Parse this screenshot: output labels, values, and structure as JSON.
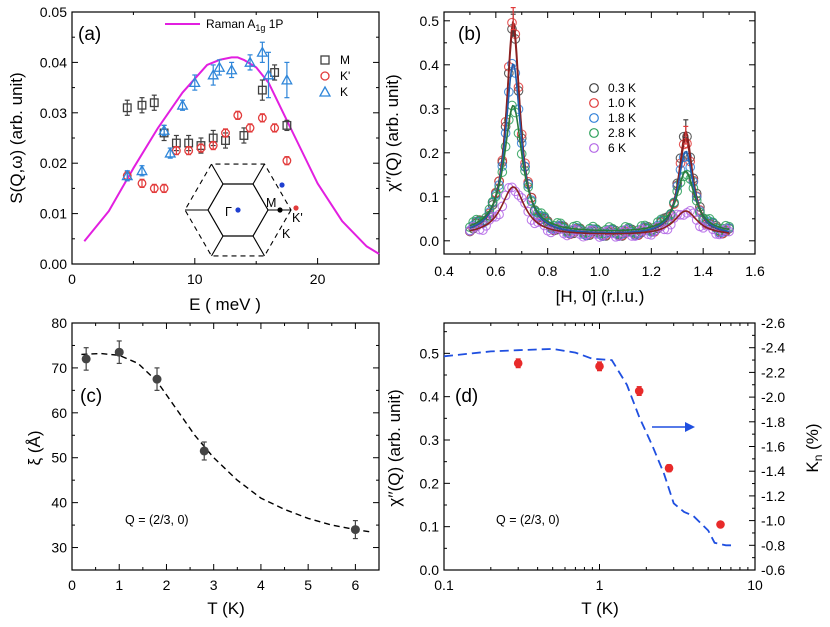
{
  "panel_labels": {
    "a": "(a)",
    "b": "(b)",
    "c": "(c)",
    "d": "(d)"
  },
  "panel_a": {
    "xlabel": "E ( meV )",
    "ylabel": "S(Q,ω) (arb. unit)",
    "xticks": [
      "0",
      "10",
      "20"
    ],
    "yticks": [
      "0.00",
      "0.01",
      "0.02",
      "0.03",
      "0.04",
      "0.05"
    ],
    "raman_label": "Raman A1g 1P",
    "bz_labels": {
      "gamma": "Γ",
      "m": "M",
      "k": "K",
      "kp": "K'"
    }
  },
  "panel_b": {
    "xlabel": "[H, 0] (r.l.u.)",
    "ylabel": "χ′′(Q) (arb. unit)",
    "xticks": [
      "0.4",
      "0.6",
      "0.8",
      "1.0",
      "1.2",
      "1.4",
      "1.6"
    ],
    "yticks": [
      "0.0",
      "0.1",
      "0.2",
      "0.3",
      "0.4",
      "0.5"
    ]
  },
  "panel_c": {
    "xlabel": "T (K)",
    "ylabel": "ξ (Å)",
    "xticks": [
      "0",
      "1",
      "2",
      "3",
      "4",
      "5",
      "6"
    ],
    "yticks": [
      "30",
      "40",
      "50",
      "60",
      "70",
      "80"
    ],
    "annotation": "Q = (2/3, 0)"
  },
  "panel_d": {
    "xlabel": "T (K)",
    "ylabel": "χ′′(Q) (arb. unit)",
    "ylabel_right": "Kn (%)",
    "xticks": [
      "0.1",
      "1",
      "10"
    ],
    "yticks": [
      "0.0",
      "0.1",
      "0.2",
      "0.3",
      "0.4",
      "0.5"
    ],
    "yticks_right": [
      "-0.6",
      "-0.8",
      "-1.0",
      "-1.2",
      "-1.4",
      "-1.6",
      "-1.8",
      "-2.0",
      "-2.2",
      "-2.4",
      "-2.6"
    ],
    "annotation": "Q = (2/3, 0)"
  },
  "colors": {
    "raman": "#e21fe0",
    "M": "#404040",
    "K_prime": "#e23b3b",
    "K": "#2f86d9",
    "T03": "#404040",
    "T10": "#e03a3a",
    "T18": "#2f7fd8",
    "T28": "#2ca05a",
    "T6": "#b366e6",
    "fit": "#8b2020",
    "kn": "#1f4fe0",
    "point": "#444444"
  },
  "chart_data": [
    {
      "panel": "(a)",
      "type": "scatter",
      "xlabel": "E ( meV )",
      "ylabel": "S(Q,ω) (arb. unit)",
      "xlim": [
        0,
        25
      ],
      "ylim": [
        0,
        0.05
      ],
      "series": [
        {
          "name": "M",
          "x": [
            4.5,
            5.7,
            6.7,
            7.5,
            8.5,
            9.5,
            10.5,
            11.5,
            12.5,
            14.0,
            15.5,
            16.5,
            17.5
          ],
          "y": [
            0.031,
            0.0315,
            0.032,
            0.026,
            0.024,
            0.024,
            0.0235,
            0.025,
            0.0245,
            0.0255,
            0.0345,
            0.038,
            0.0275
          ],
          "err": [
            0.0015,
            0.0015,
            0.0015,
            0.0015,
            0.0015,
            0.0015,
            0.0015,
            0.0015,
            0.0015,
            0.0015,
            0.002,
            0.0015,
            0.001
          ]
        },
        {
          "name": "K'",
          "x": [
            4.5,
            5.7,
            6.7,
            7.5,
            8.5,
            9.5,
            10.5,
            11.5,
            12.5,
            13.5,
            14.5,
            15.5,
            16.5,
            17.5
          ],
          "y": [
            0.0175,
            0.016,
            0.015,
            0.015,
            0.0225,
            0.0225,
            0.023,
            0.0235,
            0.026,
            0.0295,
            0.027,
            0.029,
            0.027,
            0.0205
          ],
          "err": [
            0.0008,
            0.0008,
            0.0008,
            0.0008,
            0.0008,
            0.0008,
            0.0008,
            0.0008,
            0.0008,
            0.0008,
            0.0008,
            0.0008,
            0.0008,
            0.0008
          ]
        },
        {
          "name": "K",
          "x": [
            4.5,
            5.7,
            7.5,
            8.0,
            9.0,
            10.0,
            11.5,
            12.0,
            13.0,
            14.5,
            15.5,
            16.0,
            17.5
          ],
          "y": [
            0.0175,
            0.0185,
            0.0265,
            0.022,
            0.0315,
            0.036,
            0.0375,
            0.039,
            0.0385,
            0.04,
            0.042,
            0.0375,
            0.0365
          ],
          "err": [
            0.001,
            0.001,
            0.001,
            0.001,
            0.001,
            0.0015,
            0.002,
            0.0015,
            0.0015,
            0.0015,
            0.002,
            0.0045,
            0.0035
          ]
        },
        {
          "name": "Raman A1g 1P",
          "type": "line",
          "x": [
            1,
            3,
            5,
            7,
            9,
            11,
            12,
            13,
            13.5,
            14,
            15,
            16,
            18,
            20,
            22,
            24,
            25
          ],
          "y": [
            0.0045,
            0.0105,
            0.019,
            0.027,
            0.034,
            0.0395,
            0.0405,
            0.041,
            0.041,
            0.0405,
            0.039,
            0.036,
            0.026,
            0.016,
            0.0085,
            0.0035,
            0.002
          ]
        }
      ]
    },
    {
      "panel": "(b)",
      "type": "scatter",
      "xlabel": "[H, 0] (r.l.u.)",
      "ylabel": "χ′′(Q) (arb. unit)",
      "xlim": [
        0.4,
        1.6
      ],
      "ylim": [
        -0.03,
        0.52
      ],
      "series": [
        {
          "name": "0.3 K",
          "peak_x": [
            0.667,
            1.333
          ],
          "peak_y": [
            0.47,
            0.235
          ],
          "background": 0.02
        },
        {
          "name": "1.0 K",
          "peak_x": [
            0.667,
            1.333
          ],
          "peak_y": [
            0.485,
            0.22
          ],
          "background": 0.02
        },
        {
          "name": "1.8 K",
          "peak_x": [
            0.667,
            1.333
          ],
          "peak_y": [
            0.39,
            0.19
          ],
          "background": 0.02
        },
        {
          "name": "2.8 K",
          "peak_x": [
            0.667,
            1.333
          ],
          "peak_y": [
            0.29,
            0.14
          ],
          "background": 0.025
        },
        {
          "name": "6 K",
          "peak_x": [
            0.667,
            1.333
          ],
          "peak_y": [
            0.11,
            0.055
          ],
          "background": 0.02
        }
      ]
    },
    {
      "panel": "(c)",
      "type": "scatter",
      "xlabel": "T (K)",
      "ylabel": "ξ (Å)",
      "xlim": [
        0,
        6.5
      ],
      "ylim": [
        20,
        80
      ],
      "x": [
        0.3,
        1.0,
        1.8,
        2.8,
        6.0
      ],
      "y": [
        72,
        73.5,
        67.5,
        51.5,
        34
      ],
      "err": [
        2.5,
        2.5,
        2.5,
        2.0,
        2.0
      ],
      "fit_line": {
        "x": [
          0.2,
          0.6,
          1.0,
          1.4,
          1.8,
          2.2,
          2.6,
          3.0,
          3.5,
          4.0,
          4.5,
          5.0,
          5.5,
          6.0,
          6.3
        ],
        "y": [
          73,
          73.2,
          72.8,
          71,
          67,
          61,
          55,
          50,
          45,
          41,
          38.5,
          36.5,
          35,
          34,
          33.5
        ]
      }
    },
    {
      "panel": "(d)",
      "type": "scatter",
      "xlabel": "T (K)",
      "ylabel": "χ′′(Q) (arb. unit)",
      "xlim": [
        0.1,
        10
      ],
      "xscale": "log",
      "ylim": [
        0,
        0.57
      ],
      "x": [
        0.3,
        1.0,
        1.8,
        2.8,
        6.0
      ],
      "y": [
        0.477,
        0.47,
        0.413,
        0.235,
        0.105
      ],
      "err": [
        0.01,
        0.01,
        0.01,
        0.008,
        0.006
      ],
      "kn_line": {
        "name": "Kn (%)",
        "ylim_right": [
          -0.6,
          -2.6
        ],
        "x": [
          0.1,
          0.2,
          0.3,
          0.5,
          0.7,
          0.9,
          1.2,
          1.5,
          1.8,
          2.2,
          2.6,
          3.0,
          3.5,
          4.0,
          5.0,
          5.5,
          6.5,
          7.5
        ],
        "y": [
          -2.33,
          -2.37,
          -2.38,
          -2.39,
          -2.36,
          -2.31,
          -2.3,
          -2.1,
          -1.84,
          -1.6,
          -1.38,
          -1.14,
          -1.07,
          -1.04,
          -0.92,
          -0.82,
          -0.8,
          -0.8
        ]
      }
    }
  ]
}
